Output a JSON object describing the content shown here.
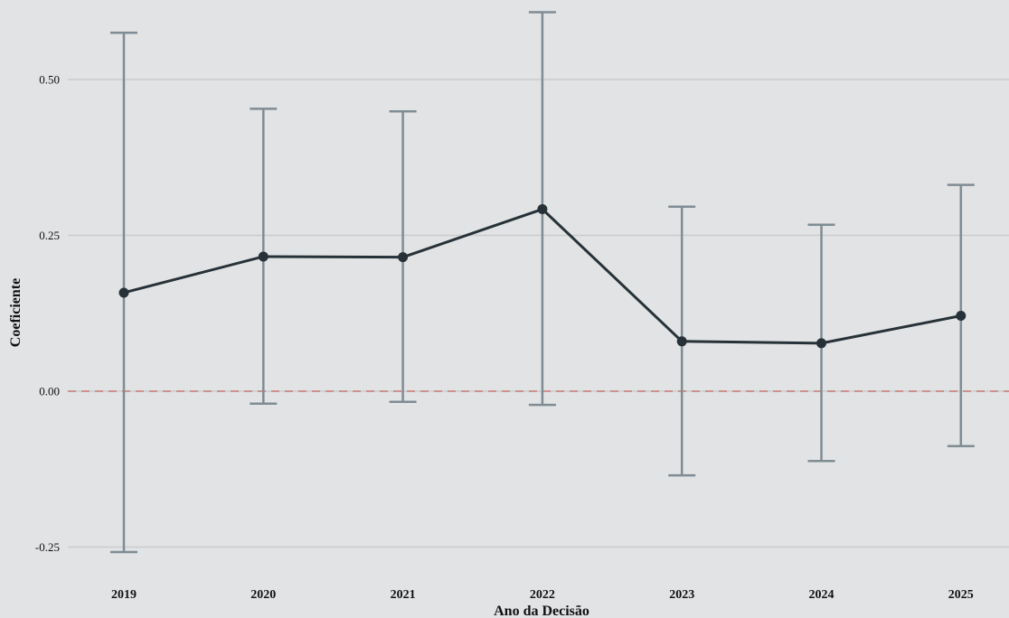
{
  "chart_data": {
    "type": "line",
    "xlabel": "Ano da Decisão",
    "ylabel": "Coeficiente",
    "categories": [
      "2019",
      "2020",
      "2021",
      "2022",
      "2023",
      "2024",
      "2025"
    ],
    "values": [
      0.158,
      0.216,
      0.215,
      0.292,
      0.08,
      0.077,
      0.121
    ],
    "ci_low": [
      -0.258,
      -0.02,
      -0.017,
      -0.022,
      -0.135,
      -0.112,
      -0.088
    ],
    "ci_high": [
      0.575,
      0.453,
      0.449,
      0.608,
      0.296,
      0.267,
      0.331
    ],
    "y_ticks": [
      -0.25,
      0.0,
      0.25,
      0.5
    ],
    "y_tick_labels": [
      "-0.25",
      "0.00",
      "0.25",
      "0.50"
    ],
    "ylim": [
      -0.28,
      0.625
    ],
    "reference_line": {
      "y": 0,
      "style": "dashed"
    },
    "grid": "horizontal",
    "colors": {
      "background": "#e2e3e5",
      "grid": "#c9cbce",
      "line": "#263238",
      "errorbar": "#7f8c94",
      "reference_line": "#c97b73"
    }
  }
}
